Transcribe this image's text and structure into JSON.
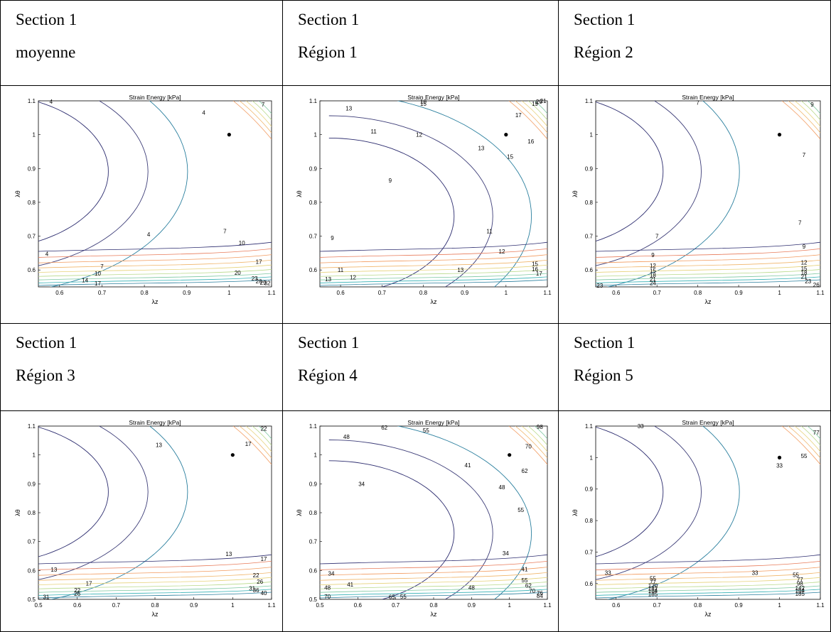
{
  "table": {
    "rows": [
      {
        "headers": [
          {
            "line1": "Section 1",
            "line2": "moyenne"
          },
          {
            "line1": "Section 1",
            "line2": "Région 1"
          },
          {
            "line1": "Section 1",
            "line2": "Région 2"
          }
        ]
      },
      {
        "headers": [
          {
            "line1": "Section 1",
            "line2": "Région 3"
          },
          {
            "line1": "Section 1",
            "line2": "Région 4"
          },
          {
            "line1": "Section 1",
            "line2": "Région 5"
          }
        ]
      }
    ]
  },
  "chart_data": [
    {
      "type": "contour",
      "title": "Strain Energy [kPa]",
      "xlabel": "λz",
      "ylabel": "λθ",
      "xlim": [
        0.55,
        1.1
      ],
      "ylim": [
        0.55,
        1.1
      ],
      "xticks": [
        "0.6",
        "0.7",
        "0.8",
        "0.9",
        "1",
        "1.1"
      ],
      "yticks": [
        "0.6",
        "0.7",
        "0.8",
        "0.9",
        "1",
        "1.1"
      ],
      "point": {
        "x": 1.0,
        "y": 1.0
      },
      "contour_labels": [
        {
          "text": "4",
          "x": 0.58,
          "y": 1.098
        },
        {
          "text": "4",
          "x": 0.94,
          "y": 1.065
        },
        {
          "text": "7",
          "x": 1.08,
          "y": 1.09
        },
        {
          "text": "4",
          "x": 0.81,
          "y": 0.705
        },
        {
          "text": "4",
          "x": 0.57,
          "y": 0.648
        },
        {
          "text": "7",
          "x": 0.99,
          "y": 0.715
        },
        {
          "text": "7",
          "x": 0.7,
          "y": 0.611
        },
        {
          "text": "10",
          "x": 1.03,
          "y": 0.68
        },
        {
          "text": "10",
          "x": 0.69,
          "y": 0.59
        },
        {
          "text": "17",
          "x": 1.07,
          "y": 0.625
        },
        {
          "text": "14",
          "x": 0.66,
          "y": 0.57
        },
        {
          "text": "17",
          "x": 0.69,
          "y": 0.56
        },
        {
          "text": "20",
          "x": 1.02,
          "y": 0.592
        },
        {
          "text": "23",
          "x": 1.06,
          "y": 0.575
        },
        {
          "text": "26",
          "x": 1.07,
          "y": 0.567
        },
        {
          "text": "29",
          "x": 1.08,
          "y": 0.563
        },
        {
          "text": "32",
          "x": 1.09,
          "y": 0.562
        }
      ]
    },
    {
      "type": "contour",
      "title": "Strain Energy [kPa]",
      "xlabel": "λz",
      "ylabel": "λθ",
      "xlim": [
        0.55,
        1.1
      ],
      "ylim": [
        0.55,
        1.1
      ],
      "xticks": [
        "0.6",
        "0.7",
        "0.8",
        "0.9",
        "1",
        "1.1"
      ],
      "yticks": [
        "0.6",
        "0.7",
        "0.8",
        "0.9",
        "1",
        "1.1"
      ],
      "point": {
        "x": 1.0,
        "y": 1.0
      },
      "contour_labels": [
        {
          "text": "13",
          "x": 0.62,
          "y": 1.078
        },
        {
          "text": "10",
          "x": 0.8,
          "y": 1.098
        },
        {
          "text": "15",
          "x": 0.8,
          "y": 1.092
        },
        {
          "text": "11",
          "x": 0.68,
          "y": 1.01
        },
        {
          "text": "12",
          "x": 0.79,
          "y": 1.0
        },
        {
          "text": "17",
          "x": 1.03,
          "y": 1.058
        },
        {
          "text": "19",
          "x": 1.07,
          "y": 1.092
        },
        {
          "text": "20",
          "x": 1.08,
          "y": 1.098
        },
        {
          "text": "21",
          "x": 1.09,
          "y": 1.1
        },
        {
          "text": "16",
          "x": 1.06,
          "y": 0.98
        },
        {
          "text": "15",
          "x": 1.01,
          "y": 0.935
        },
        {
          "text": "13",
          "x": 0.94,
          "y": 0.96
        },
        {
          "text": "9",
          "x": 0.72,
          "y": 0.865
        },
        {
          "text": "11",
          "x": 0.96,
          "y": 0.715
        },
        {
          "text": "12",
          "x": 0.99,
          "y": 0.655
        },
        {
          "text": "9",
          "x": 0.58,
          "y": 0.695
        },
        {
          "text": "11",
          "x": 0.6,
          "y": 0.6
        },
        {
          "text": "12",
          "x": 0.63,
          "y": 0.578
        },
        {
          "text": "13",
          "x": 0.57,
          "y": 0.573
        },
        {
          "text": "13",
          "x": 0.89,
          "y": 0.6
        },
        {
          "text": "15",
          "x": 1.07,
          "y": 0.618
        },
        {
          "text": "16",
          "x": 1.07,
          "y": 0.603
        },
        {
          "text": "17",
          "x": 1.08,
          "y": 0.59
        }
      ]
    },
    {
      "type": "contour",
      "title": "Strain Energy [kPa]",
      "xlabel": "λz",
      "ylabel": "λθ",
      "xlim": [
        0.55,
        1.1
      ],
      "ylim": [
        0.55,
        1.1
      ],
      "xticks": [
        "0.6",
        "0.7",
        "0.8",
        "0.9",
        "1",
        "1.1"
      ],
      "yticks": [
        "0.6",
        "0.7",
        "0.8",
        "0.9",
        "1",
        "1.1"
      ],
      "point": {
        "x": 1.0,
        "y": 1.0
      },
      "contour_labels": [
        {
          "text": "7",
          "x": 0.8,
          "y": 1.095
        },
        {
          "text": "9",
          "x": 1.08,
          "y": 1.09
        },
        {
          "text": "7",
          "x": 1.06,
          "y": 0.94
        },
        {
          "text": "7",
          "x": 1.05,
          "y": 0.74
        },
        {
          "text": "7",
          "x": 0.7,
          "y": 0.7
        },
        {
          "text": "9",
          "x": 1.06,
          "y": 0.67
        },
        {
          "text": "9",
          "x": 0.69,
          "y": 0.644
        },
        {
          "text": "12",
          "x": 1.06,
          "y": 0.622
        },
        {
          "text": "15",
          "x": 1.06,
          "y": 0.605
        },
        {
          "text": "12",
          "x": 0.69,
          "y": 0.613
        },
        {
          "text": "15",
          "x": 0.69,
          "y": 0.598
        },
        {
          "text": "18",
          "x": 0.69,
          "y": 0.585
        },
        {
          "text": "21",
          "x": 0.69,
          "y": 0.573
        },
        {
          "text": "24",
          "x": 0.69,
          "y": 0.562
        },
        {
          "text": "23",
          "x": 0.56,
          "y": 0.554
        },
        {
          "text": "18",
          "x": 1.06,
          "y": 0.592
        },
        {
          "text": "21",
          "x": 1.06,
          "y": 0.58
        },
        {
          "text": "23",
          "x": 1.07,
          "y": 0.567
        },
        {
          "text": "26",
          "x": 1.09,
          "y": 0.556
        }
      ]
    },
    {
      "type": "contour",
      "title": "Strain Energy [kPa]",
      "xlabel": "λz",
      "ylabel": "λθ",
      "xlim": [
        0.5,
        1.1
      ],
      "ylim": [
        0.5,
        1.1
      ],
      "xticks": [
        "0.5",
        "0.6",
        "0.7",
        "0.8",
        "0.9",
        "1",
        "1.1"
      ],
      "yticks": [
        "0.5",
        "0.6",
        "0.7",
        "0.8",
        "0.9",
        "1",
        "1.1"
      ],
      "point": {
        "x": 1.0,
        "y": 1.0
      },
      "contour_labels": [
        {
          "text": "22",
          "x": 1.08,
          "y": 1.092
        },
        {
          "text": "17",
          "x": 1.04,
          "y": 1.038
        },
        {
          "text": "13",
          "x": 0.81,
          "y": 1.035
        },
        {
          "text": "13",
          "x": 0.99,
          "y": 0.657
        },
        {
          "text": "13",
          "x": 0.54,
          "y": 0.603
        },
        {
          "text": "17",
          "x": 1.08,
          "y": 0.64
        },
        {
          "text": "17",
          "x": 0.63,
          "y": 0.555
        },
        {
          "text": "22",
          "x": 1.06,
          "y": 0.583
        },
        {
          "text": "22",
          "x": 0.6,
          "y": 0.532
        },
        {
          "text": "26",
          "x": 0.6,
          "y": 0.52
        },
        {
          "text": "26",
          "x": 1.07,
          "y": 0.562
        },
        {
          "text": "31",
          "x": 0.52,
          "y": 0.508
        },
        {
          "text": "31",
          "x": 1.05,
          "y": 0.538
        },
        {
          "text": "36",
          "x": 1.06,
          "y": 0.532
        },
        {
          "text": "40",
          "x": 1.08,
          "y": 0.522
        }
      ]
    },
    {
      "type": "contour",
      "title": "Strain Energy [kPa]",
      "xlabel": "λz",
      "ylabel": "λθ",
      "xlim": [
        0.5,
        1.1
      ],
      "ylim": [
        0.5,
        1.1
      ],
      "xticks": [
        "0.5",
        "0.6",
        "0.7",
        "0.8",
        "0.9",
        "1",
        "1.1"
      ],
      "yticks": [
        "0.5",
        "0.6",
        "0.7",
        "0.8",
        "0.9",
        "1",
        "1.1"
      ],
      "point": {
        "x": 1.0,
        "y": 1.0
      },
      "contour_labels": [
        {
          "text": "62",
          "x": 0.67,
          "y": 1.095
        },
        {
          "text": "55",
          "x": 0.78,
          "y": 1.085
        },
        {
          "text": "48",
          "x": 0.57,
          "y": 1.063
        },
        {
          "text": "41",
          "x": 0.89,
          "y": 0.965
        },
        {
          "text": "34",
          "x": 0.61,
          "y": 0.9
        },
        {
          "text": "48",
          "x": 0.98,
          "y": 0.888
        },
        {
          "text": "62",
          "x": 1.04,
          "y": 0.945
        },
        {
          "text": "70",
          "x": 1.05,
          "y": 1.03
        },
        {
          "text": "55",
          "x": 1.03,
          "y": 0.81
        },
        {
          "text": "34",
          "x": 0.99,
          "y": 0.66
        },
        {
          "text": "41",
          "x": 1.04,
          "y": 0.605
        },
        {
          "text": "34",
          "x": 0.53,
          "y": 0.59
        },
        {
          "text": "41",
          "x": 0.58,
          "y": 0.552
        },
        {
          "text": "48",
          "x": 0.52,
          "y": 0.54
        },
        {
          "text": "48",
          "x": 0.9,
          "y": 0.54
        },
        {
          "text": "70",
          "x": 0.52,
          "y": 0.51
        },
        {
          "text": "65",
          "x": 0.69,
          "y": 0.508
        },
        {
          "text": "55",
          "x": 0.72,
          "y": 0.51
        },
        {
          "text": "55",
          "x": 1.04,
          "y": 0.567
        },
        {
          "text": "62",
          "x": 1.05,
          "y": 0.548
        },
        {
          "text": "70",
          "x": 1.06,
          "y": 0.53
        },
        {
          "text": "76",
          "x": 1.08,
          "y": 0.522
        },
        {
          "text": "84",
          "x": 1.08,
          "y": 0.512
        },
        {
          "text": "98",
          "x": 1.08,
          "y": 1.098
        }
      ]
    },
    {
      "type": "contour",
      "title": "Strain Energy [kPa]",
      "xlabel": "λz",
      "ylabel": "λθ",
      "xlim": [
        0.55,
        1.1
      ],
      "ylim": [
        0.55,
        1.1
      ],
      "xticks": [
        "0.6",
        "0.7",
        "0.8",
        "0.9",
        "1",
        "1.1"
      ],
      "yticks": [
        "0.6",
        "0.7",
        "0.8",
        "0.9",
        "1",
        "1.1"
      ],
      "point": {
        "x": 1.0,
        "y": 1.0
      },
      "contour_labels": [
        {
          "text": "33",
          "x": 0.66,
          "y": 1.1
        },
        {
          "text": "77",
          "x": 1.09,
          "y": 1.08
        },
        {
          "text": "55",
          "x": 1.06,
          "y": 1.005
        },
        {
          "text": "33",
          "x": 1.0,
          "y": 0.975
        },
        {
          "text": "33",
          "x": 0.58,
          "y": 0.635
        },
        {
          "text": "33",
          "x": 0.94,
          "y": 0.635
        },
        {
          "text": "55",
          "x": 1.04,
          "y": 0.628
        },
        {
          "text": "55",
          "x": 0.69,
          "y": 0.617
        },
        {
          "text": "77",
          "x": 0.69,
          "y": 0.605
        },
        {
          "text": "77",
          "x": 1.05,
          "y": 0.613
        },
        {
          "text": "98",
          "x": 1.05,
          "y": 0.601
        },
        {
          "text": "120",
          "x": 0.69,
          "y": 0.594
        },
        {
          "text": "142",
          "x": 0.69,
          "y": 0.585
        },
        {
          "text": "164",
          "x": 0.69,
          "y": 0.577
        },
        {
          "text": "142",
          "x": 1.05,
          "y": 0.586
        },
        {
          "text": "164",
          "x": 1.05,
          "y": 0.578
        },
        {
          "text": "185",
          "x": 1.05,
          "y": 0.568
        },
        {
          "text": "185",
          "x": 0.69,
          "y": 0.567
        }
      ]
    }
  ]
}
